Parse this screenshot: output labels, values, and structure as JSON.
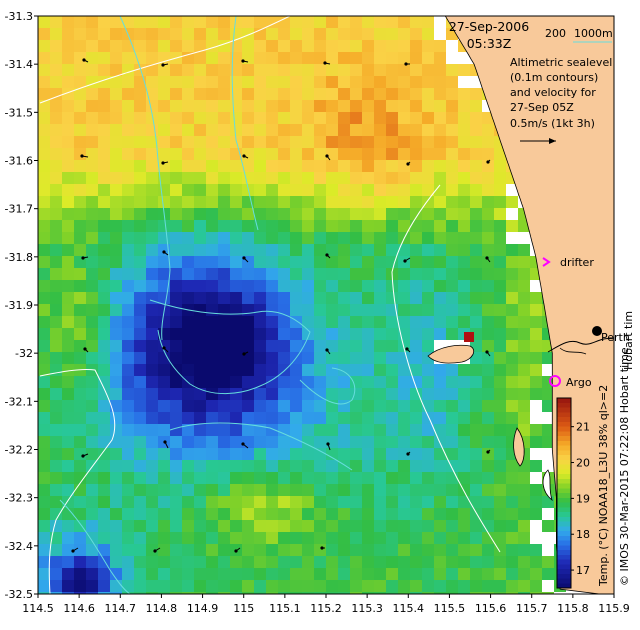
{
  "title": {
    "date": "27-Sep-2006",
    "time": "05:33Z"
  },
  "contour_legend": {
    "label_200": "200",
    "label_1000": "1000m",
    "line_color": "#66dddd"
  },
  "description": {
    "line1": "Altimetric sealevel",
    "line2": "(0.1m contours)",
    "line3": "and velocity for",
    "line4": "27-Sep 05Z",
    "line5": "0.5m/s (1kt 3h)"
  },
  "places": {
    "drifter": "drifter",
    "perth": "Perth",
    "argo": "Argo",
    "hobart_fragment": "Hobart tim"
  },
  "colorbar": {
    "ticks": [
      17,
      18,
      19,
      20,
      21
    ],
    "range": [
      16.5,
      21.8
    ],
    "label": "Temp. (°C) NOAA18_L3U 38% ql>=2"
  },
  "credit": "© IMOS 30-Mar-2015 07:22:08 Hobart time",
  "axes": {
    "x_ticks": [
      "114.5",
      "114.6",
      "114.7",
      "114.8",
      "114.9",
      "115",
      "115.1",
      "115.2",
      "115.3",
      "115.4",
      "115.5",
      "115.6",
      "115.7",
      "115.8",
      "115.9"
    ],
    "y_ticks": [
      "-31.3",
      "-31.4",
      "-31.5",
      "-31.6",
      "-31.7",
      "-31.8",
      "-31.9",
      "-32",
      "-32.1",
      "-32.2",
      "-32.3",
      "-32.4",
      "-32.5"
    ],
    "x_range": [
      114.5,
      115.9
    ],
    "y_range": [
      -32.5,
      -31.3
    ]
  },
  "colors": {
    "land": "#f8c99a",
    "drifter_marker": "#ff00ff",
    "argo_marker": "#ff00ff"
  }
}
